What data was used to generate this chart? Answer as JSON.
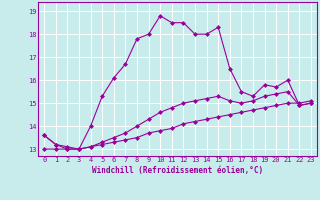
{
  "title": "",
  "xlabel": "Windchill (Refroidissement éolien,°C)",
  "ylabel": "",
  "background_color": "#c8ecec",
  "grid_color": "#ffffff",
  "line_color": "#990099",
  "spine_color": "#990099",
  "xlim": [
    -0.5,
    23.5
  ],
  "ylim": [
    12.7,
    19.4
  ],
  "yticks": [
    13,
    14,
    15,
    16,
    17,
    18,
    19
  ],
  "xticks": [
    0,
    1,
    2,
    3,
    4,
    5,
    6,
    7,
    8,
    9,
    10,
    11,
    12,
    13,
    14,
    15,
    16,
    17,
    18,
    19,
    20,
    21,
    22,
    23
  ],
  "series1_x": [
    0,
    1,
    2,
    3,
    4,
    5,
    6,
    7,
    8,
    9,
    10,
    11,
    12,
    13,
    14,
    15,
    16,
    17,
    18,
    19,
    20,
    21,
    22,
    23
  ],
  "series1_y": [
    13.6,
    13.2,
    13.1,
    13.0,
    14.0,
    15.3,
    16.1,
    16.7,
    17.8,
    18.0,
    18.8,
    18.5,
    18.5,
    18.0,
    18.0,
    18.3,
    16.5,
    15.5,
    15.3,
    15.8,
    15.7,
    16.0,
    14.9,
    15.0
  ],
  "series2_x": [
    0,
    1,
    2,
    3,
    4,
    5,
    6,
    7,
    8,
    9,
    10,
    11,
    12,
    13,
    14,
    15,
    16,
    17,
    18,
    19,
    20,
    21,
    22,
    23
  ],
  "series2_y": [
    13.0,
    13.0,
    13.0,
    13.0,
    13.1,
    13.2,
    13.3,
    13.4,
    13.5,
    13.7,
    13.8,
    13.9,
    14.1,
    14.2,
    14.3,
    14.4,
    14.5,
    14.6,
    14.7,
    14.8,
    14.9,
    15.0,
    15.0,
    15.1
  ],
  "series3_x": [
    0,
    1,
    2,
    3,
    4,
    5,
    6,
    7,
    8,
    9,
    10,
    11,
    12,
    13,
    14,
    15,
    16,
    17,
    18,
    19,
    20,
    21,
    22,
    23
  ],
  "series3_y": [
    13.6,
    13.2,
    13.0,
    13.0,
    13.1,
    13.3,
    13.5,
    13.7,
    14.0,
    14.3,
    14.6,
    14.8,
    15.0,
    15.1,
    15.2,
    15.3,
    15.1,
    15.0,
    15.1,
    15.3,
    15.4,
    15.5,
    14.9,
    15.0
  ],
  "marker": "D",
  "markersize": 2.0,
  "linewidth": 0.8,
  "tick_fontsize": 5.0,
  "xlabel_fontsize": 5.5
}
